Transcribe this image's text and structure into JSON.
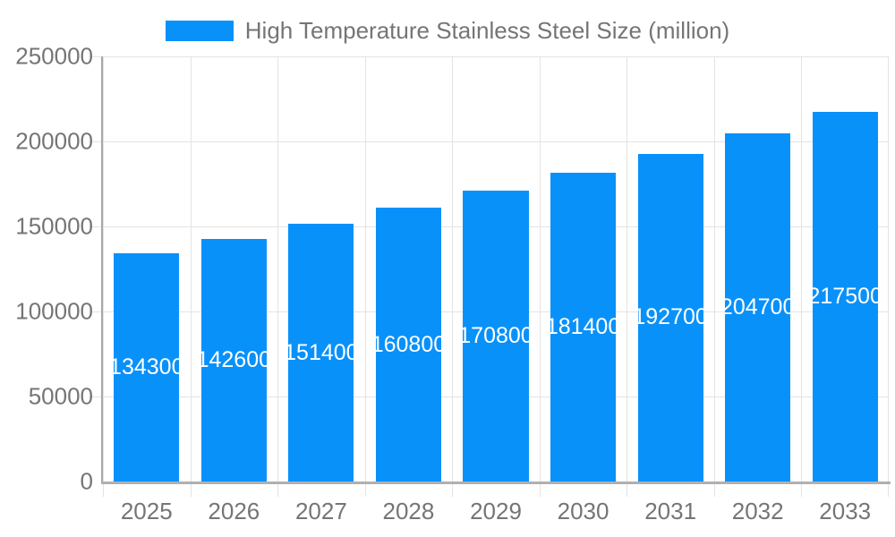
{
  "chart_data": {
    "type": "bar",
    "title": "High Temperature Stainless Steel Size (million)",
    "categories": [
      "2025",
      "2026",
      "2027",
      "2028",
      "2029",
      "2030",
      "2031",
      "2032",
      "2033"
    ],
    "values": [
      134300,
      142600,
      151400,
      160800,
      170800,
      181400,
      192700,
      204700,
      217500
    ],
    "xlabel": "",
    "ylabel": "",
    "ylim": [
      0,
      250000
    ],
    "ytick_interval": 50000,
    "ytick_labels": [
      "0",
      "50000",
      "100000",
      "150000",
      "200000",
      "250000"
    ],
    "grid": true,
    "legend_position": "top",
    "bar_width_fraction": 0.75,
    "colors": {
      "bar": "#0991FA",
      "value_label": "#ffffff",
      "axis_text": "#757575",
      "legend_text": "#757575",
      "gridline": "#e3e3e3",
      "x_axis_line": "#b0b0b0",
      "y_axis_line": "#a8a8a8"
    }
  },
  "legend": {
    "items": [
      {
        "label": "High Temperature Stainless Steel Size (million)",
        "color": "#0991FA"
      }
    ]
  }
}
